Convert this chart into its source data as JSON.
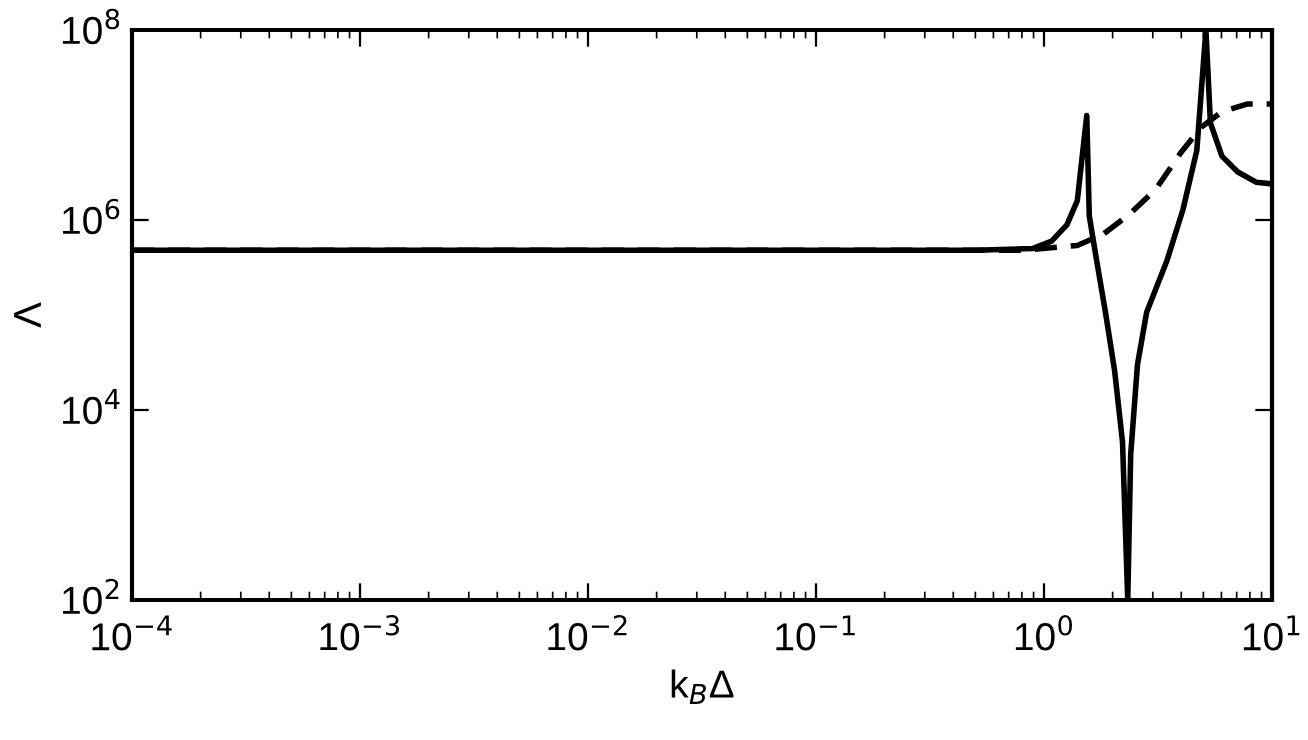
{
  "chart_data": {
    "type": "line",
    "xlabel": "k$_{B}$Δ",
    "ylabel": "Λ",
    "log": "xy",
    "grid": false,
    "legend": false,
    "marker": "none",
    "xlim": [
      0.0001,
      10
    ],
    "ylim": [
      100,
      100000000
    ],
    "xticks": [
      {
        "value": 0.0001,
        "label": "10$^{−4}$"
      },
      {
        "value": 0.001,
        "label": "10$^{−3}$"
      },
      {
        "value": 0.01,
        "label": "10$^{−2}$"
      },
      {
        "value": 0.1,
        "label": "10$^{−1}$"
      },
      {
        "value": 1,
        "label": "10$^{0}$"
      },
      {
        "value": 10,
        "label": "10$^{1}$"
      }
    ],
    "yticks": [
      {
        "value": 100,
        "label": "10$^{2}$"
      },
      {
        "value": 10000,
        "label": "10$^{4}$"
      },
      {
        "value": 1000000,
        "label": "10$^{6}$"
      },
      {
        "value": 100000000,
        "label": "10$^{8}$"
      }
    ],
    "series": [
      {
        "color": "#000000",
        "line_style": "solid",
        "x": [
          0.0001,
          0.5,
          0.89,
          1.08,
          1.26,
          1.4,
          1.54,
          1.58,
          1.7,
          1.86,
          2.04,
          2.21,
          2.33,
          2.4,
          2.57,
          2.82,
          3.47,
          4.07,
          4.68,
          5.13,
          5.37,
          6.03,
          7.08,
          8.51,
          10
        ],
        "values": [
          480000,
          480000,
          500000,
          600000,
          890000,
          1600000,
          12600000,
          1100000,
          380000,
          107000,
          26000,
          4600,
          100,
          3400,
          30000,
          107000,
          380000,
          1290000,
          5400000,
          100000000,
          10500000,
          4700000,
          3200000,
          2500000,
          2400000
        ]
      },
      {
        "color": "#000000",
        "line_style": "dashed",
        "x": [
          0.0001,
          0.8,
          1.4,
          1.82,
          2.34,
          3.09,
          3.98,
          4.9,
          6.03,
          7.76,
          10
        ],
        "values": [
          480000,
          480000,
          540000,
          710000,
          1120000,
          2100000,
          5100000,
          9500000,
          13800000,
          16600000,
          16600000
        ]
      }
    ]
  }
}
